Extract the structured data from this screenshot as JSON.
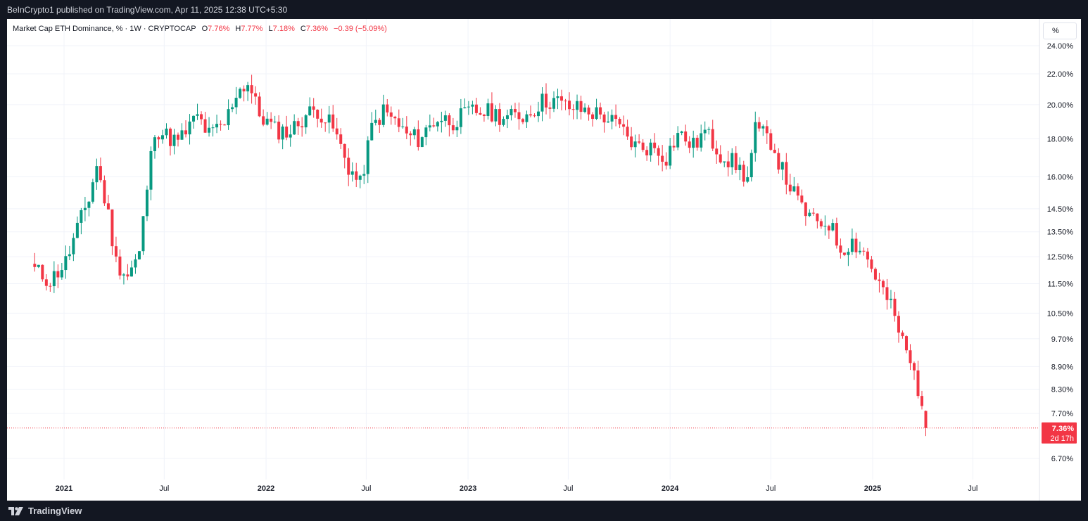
{
  "header": {
    "publisher_line": "BeInCrypto1 published on TradingView.com, Apr 11, 2025 12:38 UTC+5:30"
  },
  "legend": {
    "symbol": "Market Cap ETH Dominance, % · 1W · CRYPTOCAP",
    "open_label": "O",
    "open_value": "7.76%",
    "high_label": "H",
    "high_value": "7.77%",
    "low_label": "L",
    "low_value": "7.18%",
    "close_label": "C",
    "close_value": "7.36%",
    "change": "−0.39 (−5.09%)"
  },
  "scale_button": "%",
  "footer": {
    "brand": "TradingView"
  },
  "colors": {
    "up": "#089981",
    "down": "#f23645",
    "grid": "#f0f3fa",
    "text": "#131722"
  },
  "chart_data": {
    "type": "candlestick",
    "title": "Market Cap ETH Dominance, % · 1W · CRYPTOCAP",
    "y_scale": "log",
    "y_ticks": [
      "24.00%",
      "22.00%",
      "20.00%",
      "18.00%",
      "16.00%",
      "14.50%",
      "13.50%",
      "12.50%",
      "11.50%",
      "10.50%",
      "9.70%",
      "8.90%",
      "8.30%",
      "7.70%",
      "6.70%"
    ],
    "y_tick_values": [
      24,
      22,
      20,
      18,
      16,
      14.5,
      13.5,
      12.5,
      11.5,
      10.5,
      9.7,
      8.9,
      8.3,
      7.7,
      6.7
    ],
    "x_ticks": [
      "2021",
      "Jul",
      "2022",
      "Jul",
      "2023",
      "Jul",
      "2024",
      "Jul",
      "2025",
      "Jul"
    ],
    "x_tick_dates": [
      "2021-01-01",
      "2021-07-01",
      "2022-01-01",
      "2022-07-01",
      "2023-01-01",
      "2023-07-01",
      "2024-01-01",
      "2024-07-01",
      "2025-01-01",
      "2025-07-01"
    ],
    "x_bold_ticks": [
      "2021",
      "2022",
      "2023",
      "2024",
      "2025"
    ],
    "last_price_label": "7.36%",
    "countdown_label": "2d 17h",
    "last_value": 7.36,
    "grid": true,
    "path_points": [
      [
        "2020-11-09",
        12.0
      ],
      [
        "2020-12-07",
        11.6
      ],
      [
        "2021-01-04",
        12.3
      ],
      [
        "2021-01-25",
        13.6
      ],
      [
        "2021-02-15",
        15.0
      ],
      [
        "2021-03-01",
        16.6
      ],
      [
        "2021-03-22",
        14.2
      ],
      [
        "2021-04-05",
        12.3
      ],
      [
        "2021-04-26",
        11.8
      ],
      [
        "2021-05-17",
        12.6
      ],
      [
        "2021-05-31",
        15.5
      ],
      [
        "2021-06-14",
        18.6
      ],
      [
        "2021-06-28",
        18.3
      ],
      [
        "2021-07-26",
        17.8
      ],
      [
        "2021-08-30",
        19.3
      ],
      [
        "2021-09-20",
        18.2
      ],
      [
        "2021-10-18",
        18.8
      ],
      [
        "2021-11-08",
        20.8
      ],
      [
        "2021-11-29",
        21.4
      ],
      [
        "2021-12-20",
        19.4
      ],
      [
        "2022-01-17",
        18.5
      ],
      [
        "2022-02-14",
        18.4
      ],
      [
        "2022-03-14",
        19.4
      ],
      [
        "2022-04-04",
        19.7
      ],
      [
        "2022-05-02",
        18.6
      ],
      [
        "2022-05-30",
        16.5
      ],
      [
        "2022-06-20",
        15.6
      ],
      [
        "2022-07-11",
        18.6
      ],
      [
        "2022-08-01",
        19.6
      ],
      [
        "2022-08-22",
        19.0
      ],
      [
        "2022-09-12",
        18.2
      ],
      [
        "2022-10-03",
        18.0
      ],
      [
        "2022-11-07",
        19.2
      ],
      [
        "2022-12-05",
        19.0
      ],
      [
        "2023-01-09",
        19.6
      ],
      [
        "2023-02-13",
        19.5
      ],
      [
        "2023-03-13",
        19.2
      ],
      [
        "2023-04-17",
        19.4
      ],
      [
        "2023-05-15",
        20.2
      ],
      [
        "2023-06-05",
        20.3
      ],
      [
        "2023-06-26",
        19.9
      ],
      [
        "2023-08-07",
        19.6
      ],
      [
        "2023-09-04",
        19.3
      ],
      [
        "2023-10-02",
        18.6
      ],
      [
        "2023-10-30",
        17.6
      ],
      [
        "2023-12-04",
        17.5
      ],
      [
        "2023-12-25",
        17.0
      ],
      [
        "2024-01-15",
        18.3
      ],
      [
        "2024-02-12",
        17.6
      ],
      [
        "2024-03-04",
        18.4
      ],
      [
        "2024-04-01",
        17.2
      ],
      [
        "2024-04-29",
        16.6
      ],
      [
        "2024-05-20",
        15.9
      ],
      [
        "2024-06-03",
        18.5
      ],
      [
        "2024-07-01",
        17.9
      ],
      [
        "2024-07-22",
        16.3
      ],
      [
        "2024-08-19",
        14.8
      ],
      [
        "2024-09-16",
        13.9
      ],
      [
        "2024-10-14",
        13.9
      ],
      [
        "2024-11-04",
        12.8
      ],
      [
        "2024-11-25",
        13.1
      ],
      [
        "2024-12-16",
        12.7
      ],
      [
        "2025-01-13",
        11.5
      ],
      [
        "2025-02-03",
        10.7
      ],
      [
        "2025-02-24",
        9.6
      ],
      [
        "2025-03-17",
        8.7
      ],
      [
        "2025-03-31",
        8.0
      ],
      [
        "2025-04-07",
        7.36
      ]
    ]
  }
}
